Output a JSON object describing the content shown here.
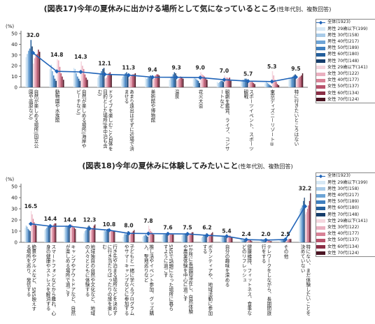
{
  "figure_titles": {
    "chart17_title": "(図表17)今年の夏休みに出かける場所として気になっているところ",
    "chart17_subtitle": "(性年代別、複数回答)",
    "chart18_title": "(図表18)今年の夏休みに体験してみたいこと",
    "chart18_subtitle": "(性年代別、複数回答)"
  },
  "colors": {
    "全体": "#1f63b8",
    "男性 29歳以下": "#d6e8f5",
    "男性 30代": "#a9cbe8",
    "男性 40代": "#6da4d6",
    "男性 50代": "#3f7fbf",
    "男性 60代": "#245f9c",
    "男性 70代": "#163d6b",
    "女性 29歳以下": "#f5d6de",
    "女性 30代": "#eab0c0",
    "女性 40代": "#d88196",
    "女性 50代": "#b8536c",
    "女性 60代": "#8b2f46",
    "女性 70代": "#4b1523"
  },
  "chart_data": [
    {
      "type": "bar",
      "ylabel": "(%)",
      "ylim": [
        0,
        50
      ],
      "yticks": [
        "0",
        "10",
        "20",
        "30",
        "40",
        "50"
      ],
      "grid": false,
      "legend_position": "right",
      "categories": [
        "自然が楽しめる場所(国立公園や高原など)",
        "動物園や水族館",
        "自然が楽しめる場所(海岸やビーチなど)",
        "ドライブを楽しむこと自体を目的とした場所(車中泊も含む)",
        "あまり遠出はせずに近場で済ませる",
        "美術館や博物館",
        "温泉",
        "花火大会",
        "観劇を鑑賞、ライブ、コンサートなど",
        "スポーツイベント、スポーツ観戦",
        "東京ディズニーリゾート®",
        "特に行きたいところはない"
      ],
      "series": [
        {
          "name": "全体(1923)",
          "values": [
            32.0,
            14.8,
            14.3,
            12.1,
            11.3,
            9.4,
            9.3,
            9.0,
            7.0,
            5.7,
            5.3,
            9.5
          ]
        },
        {
          "name": "男性 29歳以下(199)",
          "values": [
            28,
            17,
            18,
            9,
            8,
            9,
            7,
            8,
            5,
            6,
            4,
            9
          ]
        },
        {
          "name": "男性 30代(158)",
          "values": [
            31,
            21,
            17,
            11,
            10,
            8,
            9,
            9,
            4,
            7,
            5,
            8
          ]
        },
        {
          "name": "男性 40代(217)",
          "values": [
            34,
            15,
            13,
            13,
            12,
            9,
            10,
            8,
            5,
            7,
            4,
            9
          ]
        },
        {
          "name": "男性 50代(189)",
          "values": [
            36,
            11,
            10,
            15,
            13,
            10,
            12,
            7,
            6,
            8,
            3,
            10
          ]
        },
        {
          "name": "男性 60代(180)",
          "values": [
            44,
            8,
            8,
            17,
            14,
            11,
            14,
            6,
            6,
            8,
            2,
            11
          ]
        },
        {
          "name": "男性 70代(148)",
          "values": [
            38,
            6,
            6,
            18,
            12,
            9,
            13,
            4,
            5,
            7,
            1,
            12
          ]
        },
        {
          "name": "女性 29歳以下(141)",
          "values": [
            22,
            26,
            24,
            8,
            8,
            10,
            6,
            14,
            11,
            4,
            15,
            7
          ]
        },
        {
          "name": "女性 30代(122)",
          "values": [
            27,
            25,
            20,
            9,
            10,
            8,
            7,
            12,
            9,
            5,
            11,
            8
          ]
        },
        {
          "name": "女性 40代(177)",
          "values": [
            29,
            19,
            17,
            11,
            11,
            11,
            8,
            11,
            9,
            5,
            7,
            9
          ]
        },
        {
          "name": "女性 50代(137)",
          "values": [
            31,
            13,
            12,
            13,
            12,
            12,
            10,
            10,
            8,
            5,
            5,
            10
          ]
        },
        {
          "name": "女性 60代(134)",
          "values": [
            35,
            10,
            9,
            14,
            12,
            12,
            9,
            9,
            9,
            4,
            3,
            11
          ]
        },
        {
          "name": "女性 70代(124)",
          "values": [
            33,
            7,
            7,
            12,
            13,
            11,
            8,
            7,
            6,
            3,
            2,
            13
          ]
        }
      ]
    },
    {
      "type": "bar",
      "ylabel": "(%)",
      "ylim": [
        0,
        50
      ],
      "yticks": [
        "0",
        "10",
        "20",
        "30",
        "40",
        "50"
      ],
      "grid": false,
      "legend_position": "right",
      "categories": [
        "絶景やグルメなど、SNS映えする場所を巡り、発信する",
        "スマートフォンなどから離れ、心身の健康やストレスを解消する",
        "キャンプやアウトドアなど、自然が楽しめる場所で過ごす",
        "地域独自の自然や文化など、地域の人々とともに体験する",
        "行き先や泊まる場所などを決めずに行き当たりばったりの旅を楽しむ",
        "子どもと一緒に学べるプログラムやサマーキャンプなどに参加する",
        "推し活やイベント参加、グッズ購入、聖地巡りなど",
        "SNSで話題になった場所に暮らすように過ごす",
        "1か所に長期間滞在し、自然体験や農業体験を中心に過ごす",
        "ボランティアや、地域活動に参加する",
        "自分の趣味を深める",
        "健康維持、フィットネス、食事などのリフレッシュ",
        "テレワークをしながら、長期間旅行をする",
        "その他",
        "特にない、まだ体験したいことを決めていない"
      ],
      "series": [
        {
          "name": "全体(1923)",
          "values": [
            16.5,
            14.4,
            14.4,
            12.3,
            10.8,
            8.0,
            7.8,
            7.6,
            7.5,
            6.2,
            5.4,
            2.4,
            2.0,
            2.5,
            32.2
          ]
        },
        {
          "name": "男性 29歳以下(199)",
          "values": [
            13,
            11,
            13,
            8,
            10,
            5,
            5,
            6,
            6,
            4,
            6,
            3,
            2,
            2,
            28
          ]
        },
        {
          "name": "男性 30代(158)",
          "values": [
            15,
            12,
            14,
            10,
            11,
            7,
            6,
            7,
            7,
            5,
            5,
            3,
            3,
            2,
            30
          ]
        },
        {
          "name": "男性 40代(217)",
          "values": [
            14,
            13,
            15,
            11,
            10,
            8,
            6,
            7,
            7,
            6,
            5,
            2,
            2,
            2,
            31
          ]
        },
        {
          "name": "男性 50代(189)",
          "values": [
            12,
            14,
            14,
            13,
            11,
            7,
            7,
            7,
            8,
            6,
            5,
            2,
            2,
            3,
            33
          ]
        },
        {
          "name": "男性 60代(180)",
          "values": [
            11,
            15,
            15,
            14,
            12,
            9,
            6,
            8,
            8,
            7,
            5,
            2,
            1,
            3,
            37
          ]
        },
        {
          "name": "男性 70代(148)",
          "values": [
            10,
            16,
            14,
            15,
            11,
            10,
            5,
            8,
            8,
            8,
            4,
            1,
            1,
            3,
            40
          ]
        },
        {
          "name": "女性 29歳以下(141)",
          "values": [
            28,
            13,
            15,
            10,
            12,
            6,
            15,
            9,
            6,
            4,
            5,
            3,
            3,
            2,
            25
          ]
        },
        {
          "name": "女性 30代(122)",
          "values": [
            25,
            14,
            16,
            11,
            11,
            7,
            12,
            8,
            7,
            5,
            6,
            3,
            3,
            2,
            27
          ]
        },
        {
          "name": "女性 40代(177)",
          "values": [
            21,
            15,
            15,
            12,
            11,
            8,
            10,
            8,
            7,
            6,
            6,
            3,
            2,
            2,
            30
          ]
        },
        {
          "name": "女性 50代(137)",
          "values": [
            18,
            16,
            14,
            13,
            10,
            9,
            9,
            8,
            8,
            7,
            6,
            2,
            2,
            3,
            33
          ]
        },
        {
          "name": "女性 60代(134)",
          "values": [
            16,
            17,
            13,
            15,
            10,
            10,
            8,
            7,
            9,
            8,
            5,
            2,
            1,
            3,
            37
          ]
        },
        {
          "name": "女性 70代(124)",
          "values": [
            15,
            17,
            12,
            16,
            10,
            11,
            7,
            7,
            9,
            9,
            4,
            1,
            1,
            3,
            44
          ]
        }
      ]
    }
  ]
}
